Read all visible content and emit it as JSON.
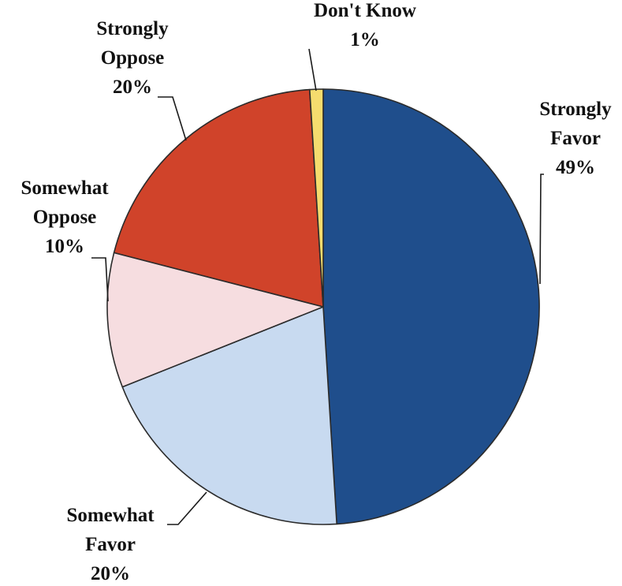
{
  "chart_data": {
    "type": "pie",
    "title": "",
    "slices": [
      {
        "label_lines": [
          "Strongly",
          "Favor"
        ],
        "percent_label": "49%",
        "value": 49,
        "color": "#1f4e8c"
      },
      {
        "label_lines": [
          "Somewhat",
          "Favor"
        ],
        "percent_label": "20%",
        "value": 20,
        "color": "#c8daf0"
      },
      {
        "label_lines": [
          "Somewhat",
          "Oppose"
        ],
        "percent_label": "10%",
        "value": 10,
        "color": "#f6dde0"
      },
      {
        "label_lines": [
          "Strongly",
          "Oppose"
        ],
        "percent_label": "20%",
        "value": 20,
        "color": "#d0432a"
      },
      {
        "label_lines": [
          "Don't Know"
        ],
        "percent_label": "1%",
        "value": 1,
        "color": "#f5dc6e"
      }
    ]
  }
}
